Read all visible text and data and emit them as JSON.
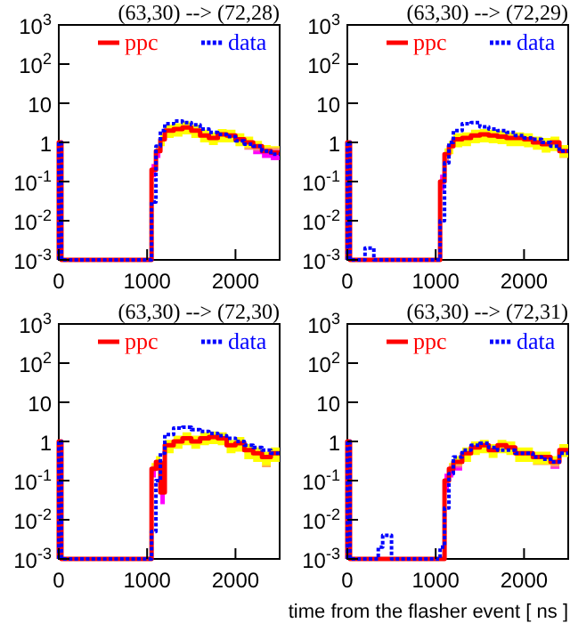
{
  "chart_data": [
    {
      "type": "step",
      "title": "(63,30) --> (72,28)",
      "xlim": [
        0,
        2500
      ],
      "xticks": [
        0,
        1000,
        2000
      ],
      "ylim": [
        0.001,
        1000
      ],
      "log": true,
      "yticks": [
        {
          "value": 1000,
          "label": "10$^{3}$"
        },
        {
          "value": 100,
          "label": "10$^{2}$"
        },
        {
          "value": 10,
          "label": "10"
        },
        {
          "value": 1,
          "label": "1"
        },
        {
          "value": 0.1,
          "label": "10$^{-1}$"
        },
        {
          "value": 0.01,
          "label": "10$^{-2}$"
        },
        {
          "value": 0.001,
          "label": "10$^{-3}$"
        }
      ],
      "legend": "top",
      "grid": false,
      "series": [
        {
          "name": "ppc",
          "color": "#ff0000",
          "line_style": "solid",
          "x": [
            0,
            0,
            15,
            30,
            1050,
            1100,
            1150,
            1200,
            1300,
            1400,
            1500,
            1600,
            1700,
            1800,
            1900,
            2000,
            2100,
            2200,
            2300,
            2400,
            2500
          ],
          "values": [
            0.001,
            1,
            1,
            0.001,
            0.2,
            0.6,
            1.2,
            2,
            2.2,
            2.4,
            2,
            1.5,
            1.3,
            1.6,
            1.5,
            1.2,
            1,
            0.8,
            0.6,
            0.55,
            0.55
          ],
          "upper": [
            null,
            null,
            null,
            null,
            0.28,
            0.85,
            1.7,
            2.8,
            3.1,
            3.4,
            2.8,
            2.1,
            1.8,
            2.2,
            2.1,
            1.7,
            1.4,
            1.1,
            0.85,
            0.8,
            0.8
          ],
          "lower": [
            null,
            null,
            null,
            null,
            0.13,
            0.4,
            0.8,
            1.3,
            1.4,
            1.6,
            1.3,
            1,
            0.85,
            1,
            1,
            0.8,
            0.65,
            0.5,
            0.4,
            0.35,
            0.35
          ]
        },
        {
          "name": "data",
          "color": "#0000ff",
          "line_style": "dotted",
          "x": [
            0,
            0,
            15,
            30,
            1050,
            1100,
            1150,
            1200,
            1300,
            1400,
            1500,
            1600,
            1700,
            1800,
            1900,
            2000,
            2100,
            2200,
            2300,
            2400,
            2500
          ],
          "values": [
            0.001,
            1,
            1,
            0.001,
            0.03,
            0.8,
            2,
            3,
            3.5,
            3.2,
            2.8,
            2.2,
            1.8,
            1.6,
            1.4,
            1.1,
            0.9,
            0.8,
            0.6,
            0.5,
            0.5
          ]
        }
      ]
    },
    {
      "type": "step",
      "title": "(63,30) --> (72,29)",
      "xlim": [
        0,
        2500
      ],
      "xticks": [
        0,
        1000,
        2000
      ],
      "ylim": [
        0.001,
        1000
      ],
      "log": true,
      "yticks": [
        {
          "value": 1000,
          "label": "10$^{3}$"
        },
        {
          "value": 100,
          "label": "10$^{2}$"
        },
        {
          "value": 10,
          "label": "10"
        },
        {
          "value": 1,
          "label": "1"
        },
        {
          "value": 0.1,
          "label": "10$^{-1}$"
        },
        {
          "value": 0.01,
          "label": "10$^{-2}$"
        },
        {
          "value": 0.001,
          "label": "10$^{-3}$"
        }
      ],
      "legend": "top",
      "grid": false,
      "series": [
        {
          "name": "ppc",
          "color": "#ff0000",
          "line_style": "solid",
          "x": [
            0,
            0,
            15,
            30,
            1050,
            1100,
            1150,
            1200,
            1300,
            1400,
            1500,
            1600,
            1700,
            1800,
            1900,
            2000,
            2100,
            2200,
            2300,
            2400,
            2500
          ],
          "values": [
            0.001,
            1,
            1,
            0.001,
            0.1,
            0.5,
            0.8,
            1.2,
            1.3,
            1.5,
            1.6,
            1.5,
            1.4,
            1.3,
            1.3,
            1.2,
            1,
            0.9,
            1,
            0.6,
            0.6
          ],
          "upper": [
            null,
            null,
            null,
            null,
            0.15,
            0.7,
            1.1,
            1.7,
            1.8,
            2.1,
            2.2,
            2.1,
            2,
            1.8,
            1.8,
            1.7,
            1.4,
            1.3,
            1.4,
            0.85,
            0.85
          ],
          "lower": [
            null,
            null,
            null,
            null,
            0.06,
            0.3,
            0.5,
            0.75,
            0.8,
            0.95,
            1,
            0.95,
            0.9,
            0.8,
            0.8,
            0.75,
            0.65,
            0.55,
            0.6,
            0.4,
            0.4
          ]
        },
        {
          "name": "data",
          "color": "#0000ff",
          "line_style": "dotted",
          "x": [
            0,
            0,
            15,
            30,
            200,
            250,
            300,
            1050,
            1100,
            1150,
            1200,
            1300,
            1400,
            1500,
            1600,
            1700,
            1800,
            1900,
            2000,
            2100,
            2200,
            2300,
            2400,
            2500
          ],
          "values": [
            0.001,
            1,
            1,
            0.001,
            0.002,
            0.002,
            0.001,
            0.01,
            0.3,
            1,
            2,
            3,
            3.2,
            2.5,
            2.2,
            2,
            1.8,
            1.5,
            1.3,
            1.2,
            1,
            0.8,
            0.6,
            0.6
          ]
        }
      ]
    },
    {
      "type": "step",
      "title": "(63,30) --> (72,30)",
      "xlim": [
        0,
        2500
      ],
      "xticks": [
        0,
        1000,
        2000
      ],
      "ylim": [
        0.001,
        1000
      ],
      "log": true,
      "yticks": [
        {
          "value": 1000,
          "label": "10$^{3}$"
        },
        {
          "value": 100,
          "label": "10$^{2}$"
        },
        {
          "value": 10,
          "label": "10"
        },
        {
          "value": 1,
          "label": "1"
        },
        {
          "value": 0.1,
          "label": "10$^{-1}$"
        },
        {
          "value": 0.01,
          "label": "10$^{-2}$"
        },
        {
          "value": 0.001,
          "label": "10$^{-3}$"
        }
      ],
      "legend": "top",
      "grid": false,
      "series": [
        {
          "name": "ppc",
          "color": "#ff0000",
          "line_style": "solid",
          "x": [
            0,
            0,
            15,
            30,
            1050,
            1100,
            1150,
            1200,
            1300,
            1400,
            1500,
            1600,
            1700,
            1800,
            1900,
            2000,
            2100,
            2200,
            2300,
            2400,
            2500
          ],
          "values": [
            0.001,
            1,
            1,
            0.001,
            0.2,
            0.3,
            0.05,
            0.8,
            1,
            1.2,
            1,
            1.2,
            1.3,
            1.2,
            0.8,
            0.9,
            0.6,
            0.5,
            0.4,
            0.5,
            0.5
          ],
          "upper": [
            null,
            null,
            null,
            null,
            0.28,
            0.42,
            0.07,
            1.1,
            1.4,
            1.7,
            1.4,
            1.7,
            1.8,
            1.7,
            1.1,
            1.3,
            0.85,
            0.7,
            0.55,
            0.7,
            0.7
          ],
          "lower": [
            null,
            null,
            null,
            null,
            0.12,
            0.18,
            0.025,
            0.5,
            0.65,
            0.8,
            0.65,
            0.8,
            0.85,
            0.8,
            0.5,
            0.55,
            0.35,
            0.3,
            0.22,
            0.3,
            0.3
          ]
        },
        {
          "name": "data",
          "color": "#0000ff",
          "line_style": "dotted",
          "x": [
            0,
            0,
            15,
            30,
            1050,
            1100,
            1150,
            1200,
            1300,
            1400,
            1500,
            1600,
            1700,
            1800,
            1900,
            2000,
            2100,
            2200,
            2300,
            2400,
            2500
          ],
          "values": [
            0.001,
            1,
            1,
            0.001,
            0.005,
            0.1,
            0.5,
            1.5,
            2.2,
            2.3,
            2,
            1.8,
            1.6,
            1.4,
            1.2,
            1,
            0.8,
            0.7,
            0.6,
            0.5,
            0.5
          ]
        }
      ]
    },
    {
      "type": "step",
      "title": "(63,30) --> (72,31)",
      "xlabel": "time from the flasher event [ ns ]",
      "xlim": [
        0,
        2500
      ],
      "xticks": [
        0,
        1000,
        2000
      ],
      "ylim": [
        0.001,
        1000
      ],
      "log": true,
      "yticks": [
        {
          "value": 1000,
          "label": "10$^{3}$"
        },
        {
          "value": 100,
          "label": "10$^{2}$"
        },
        {
          "value": 10,
          "label": "10"
        },
        {
          "value": 1,
          "label": "1"
        },
        {
          "value": 0.1,
          "label": "10$^{-1}$"
        },
        {
          "value": 0.01,
          "label": "10$^{-2}$"
        },
        {
          "value": 0.001,
          "label": "10$^{-3}$"
        }
      ],
      "legend": "top",
      "grid": false,
      "series": [
        {
          "name": "ppc",
          "color": "#ff0000",
          "line_style": "solid",
          "x": [
            0,
            0,
            15,
            30,
            1100,
            1150,
            1200,
            1300,
            1400,
            1500,
            1600,
            1700,
            1800,
            1900,
            2000,
            2100,
            2200,
            2300,
            2400,
            2500
          ],
          "values": [
            0.001,
            1,
            1,
            0.001,
            0.1,
            0.2,
            0.3,
            0.5,
            0.7,
            0.8,
            0.6,
            0.8,
            0.7,
            0.5,
            0.5,
            0.4,
            0.4,
            0.3,
            0.6,
            0.6
          ],
          "upper": [
            null,
            null,
            null,
            null,
            0.15,
            0.28,
            0.42,
            0.7,
            1,
            1.1,
            0.85,
            1.1,
            1,
            0.7,
            0.7,
            0.55,
            0.55,
            0.42,
            0.85,
            0.85
          ],
          "lower": [
            null,
            null,
            null,
            null,
            0.05,
            0.12,
            0.18,
            0.3,
            0.45,
            0.5,
            0.38,
            0.5,
            0.45,
            0.3,
            0.3,
            0.25,
            0.25,
            0.2,
            0.4,
            0.4
          ]
        },
        {
          "name": "data",
          "color": "#0000ff",
          "line_style": "dotted",
          "x": [
            0,
            0,
            15,
            30,
            350,
            400,
            450,
            500,
            1050,
            1100,
            1150,
            1200,
            1300,
            1400,
            1500,
            1600,
            1700,
            1800,
            1900,
            2000,
            2100,
            2200,
            2300,
            2400,
            2500
          ],
          "values": [
            0.001,
            1,
            1,
            0.001,
            0.002,
            0.004,
            0.004,
            0.001,
            0.002,
            0.02,
            0.15,
            0.4,
            0.6,
            0.8,
            0.9,
            0.7,
            0.6,
            0.6,
            0.5,
            0.5,
            0.4,
            0.35,
            0.3,
            0.5,
            0.5
          ]
        }
      ]
    }
  ]
}
